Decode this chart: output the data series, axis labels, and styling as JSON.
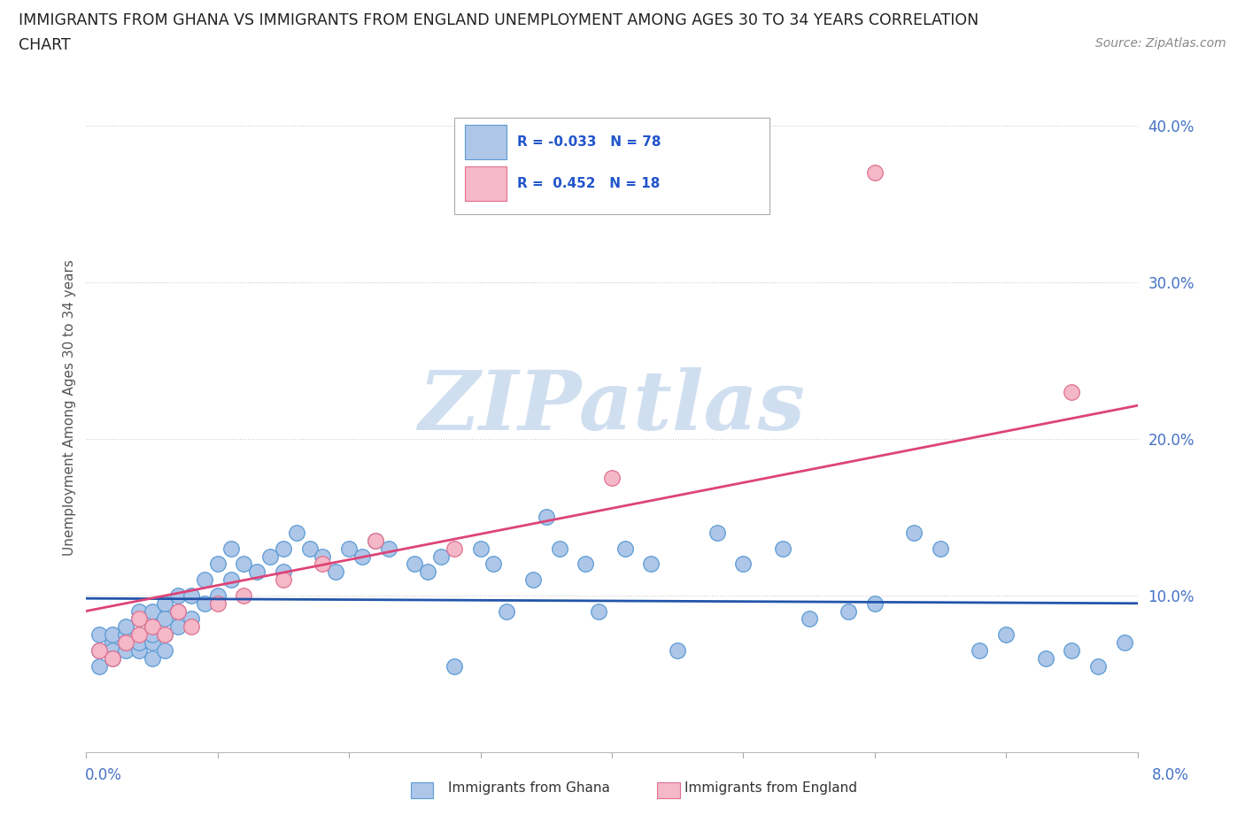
{
  "title_line1": "IMMIGRANTS FROM GHANA VS IMMIGRANTS FROM ENGLAND UNEMPLOYMENT AMONG AGES 30 TO 34 YEARS CORRELATION",
  "title_line2": "CHART",
  "source": "Source: ZipAtlas.com",
  "ylabel": "Unemployment Among Ages 30 to 34 years",
  "legend_ghana": "Immigrants from Ghana",
  "legend_england": "Immigrants from England",
  "ghana_color": "#aec6e8",
  "england_color": "#f4b8c8",
  "ghana_edge_color": "#5b9bd5",
  "england_edge_color": "#e07090",
  "trend_ghana_color": "#2255aa",
  "trend_england_color": "#dd4477",
  "watermark_color": "#d0dff0",
  "xmin": 0.0,
  "xmax": 0.08,
  "ymin": 0.0,
  "ymax": 0.44,
  "ytick_vals": [
    0.1,
    0.2,
    0.3,
    0.4
  ],
  "ghana_x": [
    0.001,
    0.001,
    0.001,
    0.002,
    0.002,
    0.002,
    0.002,
    0.003,
    0.003,
    0.003,
    0.003,
    0.004,
    0.004,
    0.004,
    0.004,
    0.004,
    0.005,
    0.005,
    0.005,
    0.005,
    0.005,
    0.006,
    0.006,
    0.006,
    0.006,
    0.007,
    0.007,
    0.007,
    0.008,
    0.008,
    0.009,
    0.009,
    0.01,
    0.01,
    0.011,
    0.011,
    0.012,
    0.013,
    0.014,
    0.015,
    0.015,
    0.016,
    0.017,
    0.018,
    0.019,
    0.02,
    0.021,
    0.022,
    0.023,
    0.025,
    0.026,
    0.027,
    0.028,
    0.03,
    0.031,
    0.032,
    0.034,
    0.035,
    0.036,
    0.038,
    0.039,
    0.041,
    0.043,
    0.045,
    0.048,
    0.05,
    0.053,
    0.055,
    0.058,
    0.06,
    0.063,
    0.065,
    0.068,
    0.07,
    0.073,
    0.075,
    0.077,
    0.079
  ],
  "ghana_y": [
    0.065,
    0.075,
    0.055,
    0.07,
    0.065,
    0.075,
    0.06,
    0.075,
    0.065,
    0.08,
    0.07,
    0.085,
    0.075,
    0.09,
    0.065,
    0.07,
    0.09,
    0.08,
    0.07,
    0.075,
    0.06,
    0.095,
    0.085,
    0.075,
    0.065,
    0.1,
    0.09,
    0.08,
    0.1,
    0.085,
    0.11,
    0.095,
    0.12,
    0.1,
    0.13,
    0.11,
    0.12,
    0.115,
    0.125,
    0.13,
    0.115,
    0.14,
    0.13,
    0.125,
    0.115,
    0.13,
    0.125,
    0.135,
    0.13,
    0.12,
    0.115,
    0.125,
    0.055,
    0.13,
    0.12,
    0.09,
    0.11,
    0.15,
    0.13,
    0.12,
    0.09,
    0.13,
    0.12,
    0.065,
    0.14,
    0.12,
    0.13,
    0.085,
    0.09,
    0.095,
    0.14,
    0.13,
    0.065,
    0.075,
    0.06,
    0.065,
    0.055,
    0.07
  ],
  "england_x": [
    0.001,
    0.002,
    0.003,
    0.004,
    0.004,
    0.005,
    0.006,
    0.007,
    0.008,
    0.01,
    0.012,
    0.015,
    0.018,
    0.022,
    0.028,
    0.04,
    0.06,
    0.075
  ],
  "england_y": [
    0.065,
    0.06,
    0.07,
    0.075,
    0.085,
    0.08,
    0.075,
    0.09,
    0.08,
    0.095,
    0.1,
    0.11,
    0.12,
    0.135,
    0.13,
    0.175,
    0.37,
    0.23
  ]
}
